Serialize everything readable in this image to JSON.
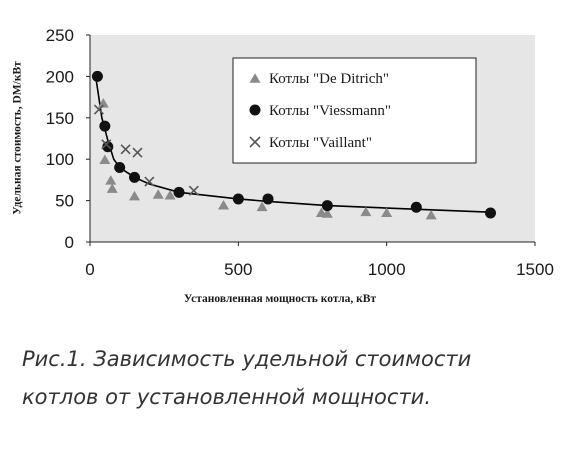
{
  "chart_data": {
    "type": "scatter",
    "title": "",
    "xlabel": "Установленная мощность котла, кВт",
    "ylabel": "Удельная стоимость, DM/кВт",
    "xlim": [
      0,
      1500
    ],
    "ylim": [
      0,
      250
    ],
    "xticks": [
      "0",
      "500",
      "1000",
      "1500"
    ],
    "yticks": [
      "0",
      "50",
      "100",
      "150",
      "200",
      "250"
    ],
    "grid": false,
    "plot_background": "#e6e6e6",
    "legend_position": "top-right (inside plot)",
    "series": [
      {
        "name": "Котлы \"De Ditrich\"",
        "marker": "triangle",
        "color": "#8a8a8a",
        "points": [
          [
            45,
            168
          ],
          [
            50,
            100
          ],
          [
            70,
            75
          ],
          [
            75,
            65
          ],
          [
            150,
            56
          ],
          [
            230,
            58
          ],
          [
            270,
            57
          ],
          [
            450,
            45
          ],
          [
            580,
            43
          ],
          [
            780,
            36
          ],
          [
            800,
            35
          ],
          [
            930,
            37
          ],
          [
            1000,
            36
          ],
          [
            1150,
            33
          ]
        ]
      },
      {
        "name": "Котлы \"Viessmann\"",
        "marker": "circle",
        "color": "#111111",
        "points": [
          [
            25,
            200
          ],
          [
            50,
            140
          ],
          [
            60,
            115
          ],
          [
            100,
            90
          ],
          [
            150,
            78
          ],
          [
            300,
            60
          ],
          [
            500,
            52
          ],
          [
            600,
            52
          ],
          [
            800,
            44
          ],
          [
            1100,
            42
          ],
          [
            1350,
            35
          ]
        ]
      },
      {
        "name": "Котлы \"Vaillant\"",
        "marker": "x",
        "color": "#555555",
        "points": [
          [
            30,
            160
          ],
          [
            55,
            118
          ],
          [
            120,
            112
          ],
          [
            160,
            108
          ],
          [
            200,
            73
          ],
          [
            350,
            62
          ]
        ]
      }
    ],
    "trend_line": {
      "color": "#000000",
      "points": [
        [
          20,
          198
        ],
        [
          40,
          150
        ],
        [
          60,
          123
        ],
        [
          80,
          100
        ],
        [
          100,
          90
        ],
        [
          150,
          78
        ],
        [
          200,
          70
        ],
        [
          300,
          60
        ],
        [
          500,
          52
        ],
        [
          600,
          49
        ],
        [
          800,
          44
        ],
        [
          1000,
          41
        ],
        [
          1350,
          36
        ]
      ]
    }
  },
  "caption": {
    "line1": "Рис.1. Зависимость удельной стоимости",
    "line2": "котлов от установленной мощности."
  }
}
